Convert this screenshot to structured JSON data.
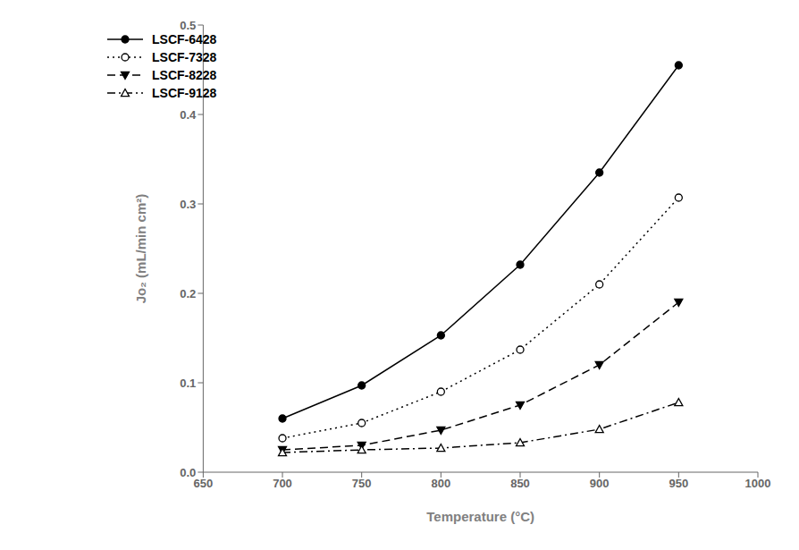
{
  "chart_data": {
    "type": "line",
    "x": [
      700,
      750,
      800,
      850,
      900,
      950
    ],
    "series": [
      {
        "name": "LSCF-6428",
        "values": [
          0.06,
          0.097,
          0.153,
          0.232,
          0.335,
          0.455
        ],
        "color": "black",
        "line_style": "solid",
        "marker": "filled_circle"
      },
      {
        "name": "LSCF-7328",
        "values": [
          0.038,
          0.055,
          0.09,
          0.137,
          0.21,
          0.307
        ],
        "color": "black",
        "line_style": "dotted",
        "marker": "open_circle"
      },
      {
        "name": "LSCF-8228",
        "values": [
          0.025,
          0.03,
          0.047,
          0.075,
          0.12,
          0.19
        ],
        "color": "black",
        "line_style": "dashed",
        "marker": "filled_triangle_down"
      },
      {
        "name": "LSCF-9128",
        "values": [
          0.022,
          0.025,
          0.027,
          0.033,
          0.048,
          0.078
        ],
        "color": "black",
        "line_style": "dashdot",
        "marker": "open_triangle_up"
      }
    ],
    "xlabel": "Temperature (°C)",
    "ylabel": "Jo₂ (mL/min cm²)",
    "xlim": [
      650,
      1000
    ],
    "ylim": [
      0.0,
      0.5
    ],
    "xticks": [
      650,
      700,
      750,
      800,
      850,
      900,
      950,
      1000
    ],
    "yticks": [
      {
        "value": 0.0,
        "label": "0.0"
      },
      0.1,
      0.2,
      0.3,
      0.4,
      0.5
    ],
    "grid": false,
    "legend": "upper left"
  }
}
